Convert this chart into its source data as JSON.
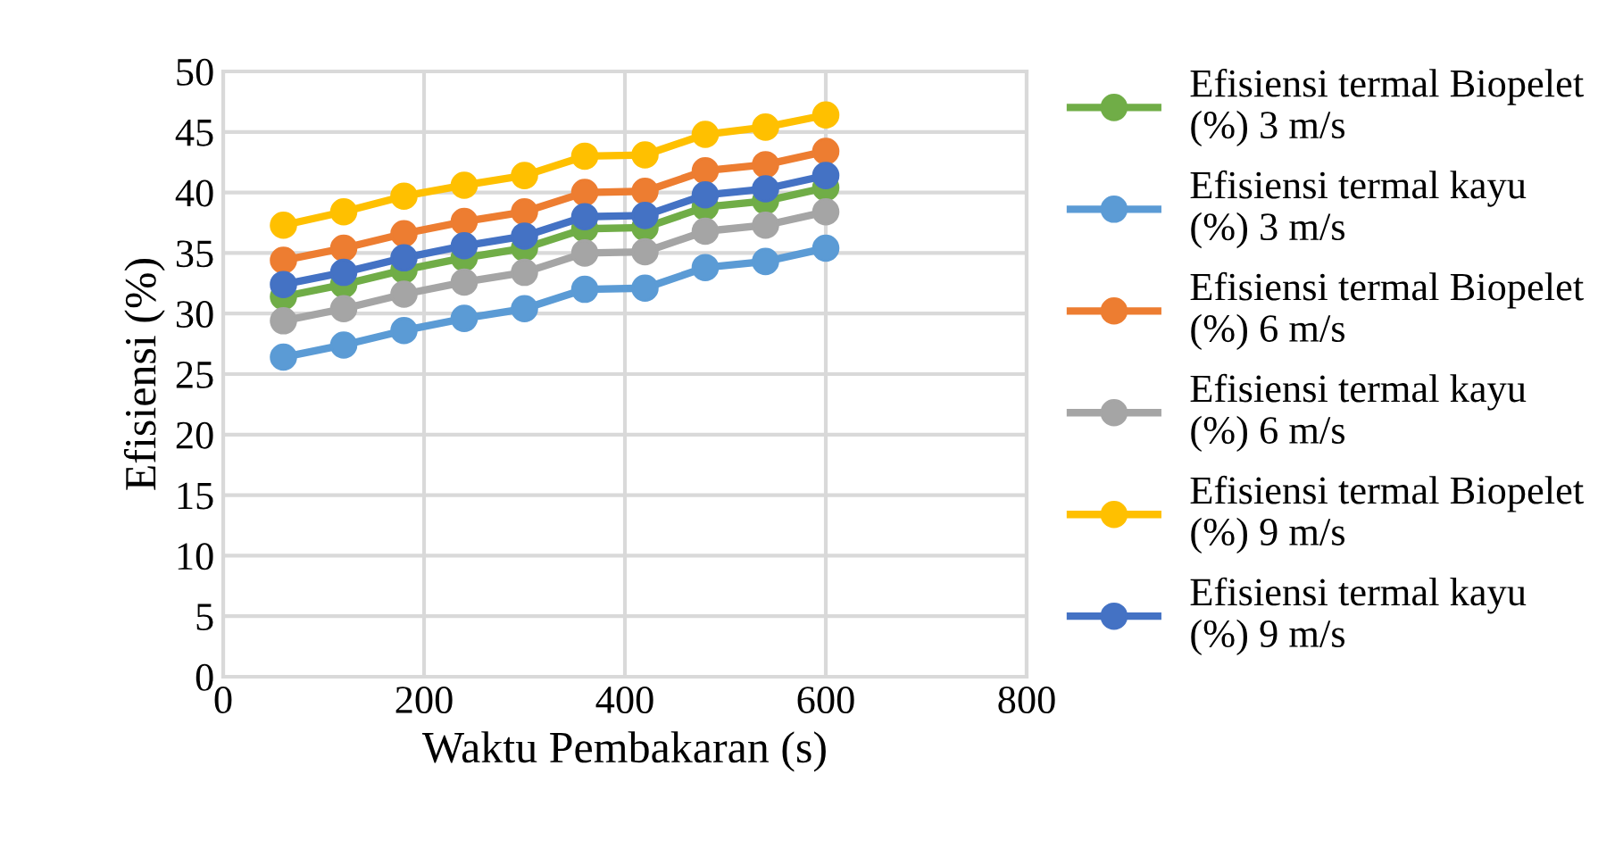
{
  "chart_data": {
    "type": "line",
    "xlabel": "Waktu Pembakaran (s)",
    "ylabel": "Efisiensi (%)",
    "x": [
      60,
      120,
      180,
      240,
      300,
      360,
      420,
      480,
      540,
      600
    ],
    "series": [
      {
        "name": "Efisiensi termal Biopelet\n(%) 3 m/s",
        "color": "#70ad47",
        "values": [
          31.4,
          32.4,
          33.6,
          34.6,
          35.4,
          37.0,
          37.1,
          38.8,
          39.3,
          40.4
        ]
      },
      {
        "name": "Efisiensi termal kayu\n(%) 3 m/s",
        "color": "#5b9bd5",
        "values": [
          26.4,
          27.4,
          28.6,
          29.6,
          30.4,
          32.0,
          32.1,
          33.8,
          34.3,
          35.4
        ]
      },
      {
        "name": "Efisiensi termal Biopelet\n(%) 6 m/s",
        "color": "#ed7d31",
        "values": [
          34.4,
          35.4,
          36.6,
          37.6,
          38.4,
          40.0,
          40.1,
          41.8,
          42.3,
          43.4
        ]
      },
      {
        "name": "Efisiensi termal kayu\n(%) 6 m/s",
        "color": "#a5a5a5",
        "values": [
          29.4,
          30.4,
          31.6,
          32.6,
          33.4,
          35.0,
          35.1,
          36.8,
          37.3,
          38.4
        ]
      },
      {
        "name": "Efisiensi termal Biopelet\n(%) 9 m/s",
        "color": "#ffc000",
        "values": [
          37.3,
          38.4,
          39.7,
          40.6,
          41.4,
          43.0,
          43.1,
          44.8,
          45.4,
          46.4
        ]
      },
      {
        "name": "Efisiensi termal kayu\n(%) 9 m/s",
        "color": "#4472c4",
        "values": [
          32.4,
          33.4,
          34.6,
          35.6,
          36.4,
          38.0,
          38.1,
          39.8,
          40.3,
          41.4
        ]
      }
    ],
    "xlim": [
      0,
      800
    ],
    "xticks": [
      0,
      200,
      400,
      600,
      800
    ],
    "ylim": [
      0,
      50
    ],
    "yticks": [
      0,
      5,
      10,
      15,
      20,
      25,
      30,
      35,
      40,
      45,
      50
    ],
    "grid": true,
    "legend": "right",
    "marker": "circle",
    "line_style": "solid"
  }
}
